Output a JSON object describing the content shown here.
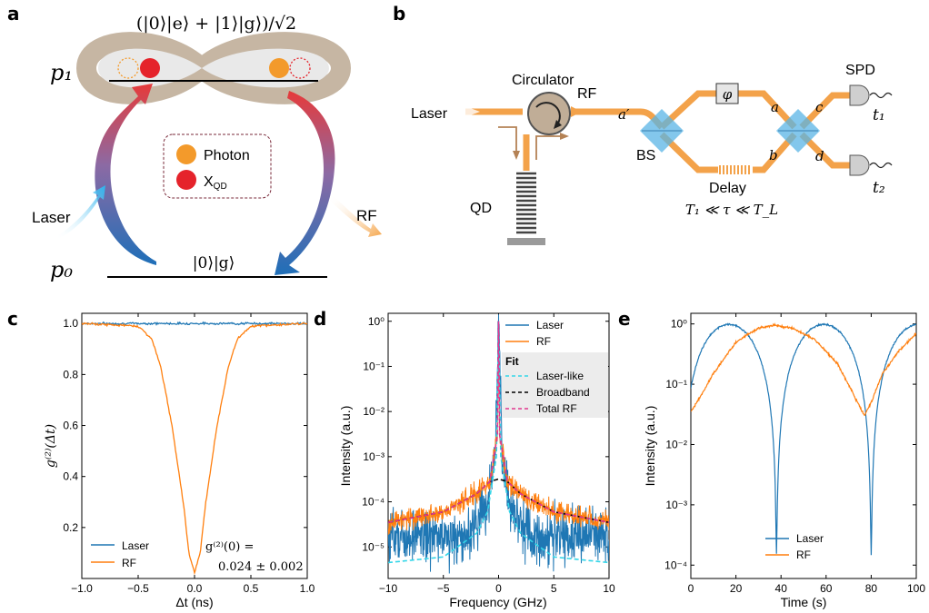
{
  "panels": {
    "a": "a",
    "b": "b",
    "c": "c",
    "d": "d",
    "e": "e"
  },
  "panel_a": {
    "state_label": "(|0⟩|e⟩ + |1⟩|g⟩)/√2",
    "p1": "p₁",
    "p0": "p₀",
    "ground_label": "|0⟩|g⟩",
    "legend_photon": "Photon",
    "legend_xqd": "X",
    "legend_xqd_sub": "QD",
    "laser": "Laser",
    "rf": "RF",
    "colors": {
      "photon": "#f39a2b",
      "xqd": "#e5232b",
      "lobe": "#c8b8a6"
    }
  },
  "panel_b": {
    "circulator": "Circulator",
    "laser": "Laser",
    "rf": "RF",
    "qd": "QD",
    "bs": "BS",
    "delay": "Delay",
    "phase": "φ",
    "spd": "SPD",
    "a_prime": "a′",
    "port_a": "a",
    "port_b": "b",
    "port_c": "c",
    "port_d": "d",
    "t1": "t₁",
    "t2": "t₂",
    "condition": "T₁ ≪ τ ≪ T_L",
    "colors": {
      "fiber": "#f3a24a",
      "splitter": "#5ab4e5"
    }
  },
  "chart_data": [
    {
      "id": "c",
      "type": "line",
      "xlabel": "Δt (ns)",
      "ylabel": "g⁽²⁾(Δt)",
      "xlim": [
        -1.0,
        1.0
      ],
      "ylim": [
        0.0,
        1.04
      ],
      "xticks": [
        "−1.0",
        "−0.5",
        "0.0",
        "0.5",
        "1.0"
      ],
      "yticks": [
        "0.2",
        "0.4",
        "0.6",
        "0.8",
        "1.0"
      ],
      "series": [
        {
          "name": "Laser",
          "color": "#1f77b4",
          "points": [
            [
              -1.0,
              1.0
            ],
            [
              1.0,
              1.0
            ]
          ]
        },
        {
          "name": "RF",
          "color": "#ff7f0e",
          "points": [
            [
              -1.0,
              1.0
            ],
            [
              -0.5,
              0.99
            ],
            [
              -0.38,
              0.94
            ],
            [
              -0.3,
              0.83
            ],
            [
              -0.2,
              0.6
            ],
            [
              -0.1,
              0.3
            ],
            [
              -0.05,
              0.1
            ],
            [
              0.0,
              0.024
            ],
            [
              0.05,
              0.1
            ],
            [
              0.1,
              0.3
            ],
            [
              0.2,
              0.6
            ],
            [
              0.3,
              0.83
            ],
            [
              0.38,
              0.94
            ],
            [
              0.5,
              0.99
            ],
            [
              1.0,
              1.0
            ]
          ]
        }
      ],
      "annotation": "g⁽²⁾(0) =",
      "annotation2": "0.024 ± 0.002",
      "legend": "lower-left"
    },
    {
      "id": "d",
      "type": "line",
      "yscale": "log",
      "xlabel": "Frequency (GHz)",
      "ylabel": "Intensity (a.u.)",
      "xlim": [
        -10,
        10
      ],
      "ylim": [
        2e-06,
        1.5
      ],
      "xticks": [
        "−10",
        "−5",
        "0",
        "5",
        "10"
      ],
      "yticks": [
        "10⁻⁵",
        "10⁻⁴",
        "10⁻³",
        "10⁻²",
        "10⁻¹",
        "10⁰"
      ],
      "series": [
        {
          "name": "Laser",
          "color": "#1f77b4",
          "points": [
            [
              -10,
              2e-05
            ],
            [
              -3,
              1.5e-05
            ],
            [
              -1,
              0.0001
            ],
            [
              -0.3,
              0.001
            ],
            [
              0,
              1.0
            ],
            [
              0.3,
              0.001
            ],
            [
              1,
              0.0001
            ],
            [
              3,
              1.5e-05
            ],
            [
              10,
              2e-05
            ]
          ]
        },
        {
          "name": "RF",
          "color": "#ff7f0e",
          "points": [
            [
              -10,
              3.5e-05
            ],
            [
              -5,
              6e-05
            ],
            [
              -2,
              0.00015
            ],
            [
              -0.8,
              0.00028
            ],
            [
              -0.1,
              0.003
            ],
            [
              0,
              1.0
            ],
            [
              0.1,
              0.003
            ],
            [
              0.8,
              0.00028
            ],
            [
              2,
              0.00015
            ],
            [
              5,
              6e-05
            ],
            [
              10,
              3.5e-05
            ]
          ]
        },
        {
          "name": "Laser-like",
          "color": "#33d6e8",
          "dash": true,
          "points": [
            [
              -10,
              4.5e-06
            ],
            [
              -5,
              6e-06
            ],
            [
              -2,
              2e-05
            ],
            [
              -1,
              6e-05
            ],
            [
              -0.2,
              0.001
            ],
            [
              0,
              1.0
            ],
            [
              0.2,
              0.001
            ],
            [
              1,
              6e-05
            ],
            [
              2,
              2e-05
            ],
            [
              5,
              6e-06
            ],
            [
              10,
              4.5e-06
            ]
          ]
        },
        {
          "name": "Broadband",
          "color": "#000000",
          "dash": true,
          "points": [
            [
              -10,
              3.5e-05
            ],
            [
              -5,
              6e-05
            ],
            [
              -2,
              0.00015
            ],
            [
              -0.8,
              0.00028
            ],
            [
              0,
              0.00032
            ],
            [
              0.8,
              0.00028
            ],
            [
              2,
              0.00015
            ],
            [
              5,
              6e-05
            ],
            [
              10,
              3.5e-05
            ]
          ]
        },
        {
          "name": "Total RF",
          "color": "#e2368f",
          "dash": true,
          "points": [
            [
              -10,
              3.5e-05
            ],
            [
              -5,
              6e-05
            ],
            [
              -2,
              0.00015
            ],
            [
              -0.8,
              0.00028
            ],
            [
              -0.1,
              0.003
            ],
            [
              0,
              1.0
            ],
            [
              0.1,
              0.003
            ],
            [
              0.8,
              0.00028
            ],
            [
              2,
              0.00015
            ],
            [
              5,
              6e-05
            ],
            [
              10,
              3.5e-05
            ]
          ]
        }
      ],
      "fit_title": "Fit",
      "legend": "top-right"
    },
    {
      "id": "e",
      "type": "line",
      "yscale": "log",
      "xlabel": "Time (s)",
      "ylabel": "Intensity (a.u.)",
      "xlim": [
        0,
        100
      ],
      "ylim": [
        6e-05,
        1.5
      ],
      "xticks": [
        "0",
        "20",
        "40",
        "60",
        "80",
        "100"
      ],
      "yticks": [
        "10⁻⁴",
        "10⁻³",
        "10⁻²",
        "10⁻¹",
        "10⁰"
      ],
      "series": [
        {
          "name": "Laser",
          "color": "#1f77b4",
          "period": 42,
          "phase": 17
        },
        {
          "name": "RF",
          "color": "#ff7f0e",
          "points": [
            [
              0,
              0.035
            ],
            [
              5,
              0.07
            ],
            [
              10,
              0.15
            ],
            [
              20,
              0.5
            ],
            [
              30,
              0.85
            ],
            [
              37,
              0.95
            ],
            [
              45,
              0.85
            ],
            [
              55,
              0.55
            ],
            [
              65,
              0.22
            ],
            [
              72,
              0.07
            ],
            [
              77,
              0.03
            ],
            [
              80,
              0.05
            ],
            [
              85,
              0.15
            ],
            [
              92,
              0.35
            ],
            [
              100,
              0.7
            ]
          ]
        }
      ],
      "legend": "lower-center"
    }
  ]
}
